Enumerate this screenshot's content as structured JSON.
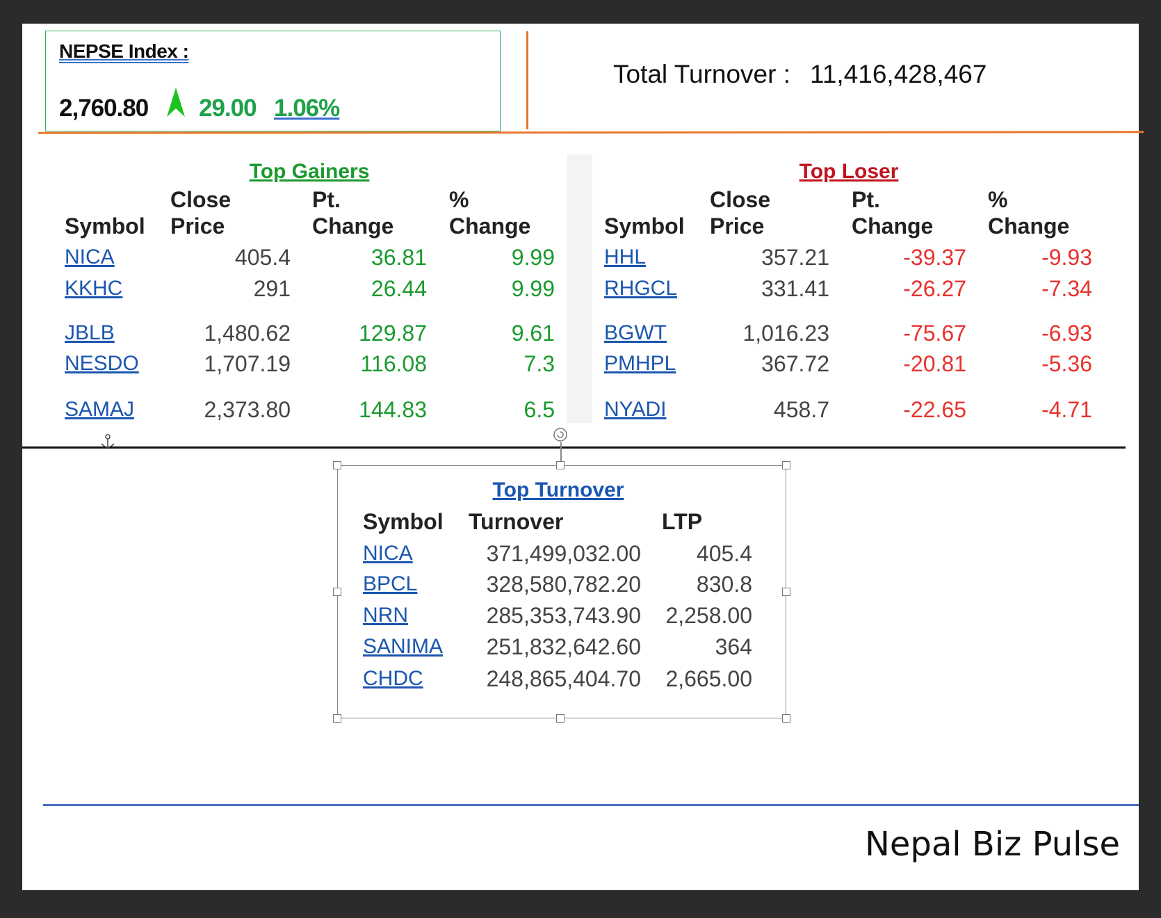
{
  "header": {
    "index_label": "NEPSE Index :",
    "index_value": "2,760.80",
    "index_change": "29.00",
    "index_change_pct": "1.06%",
    "total_turnover_label": "Total Turnover :",
    "total_turnover": "11,416,428,467"
  },
  "top_gainers": {
    "title": "Top Gainers",
    "columns": [
      "Symbol",
      "Close Price",
      "Pt. Change",
      "% Change"
    ],
    "rows": [
      [
        "NICA",
        "405.4",
        "36.81",
        "9.99"
      ],
      [
        "KKHC",
        "291",
        "26.44",
        "9.99"
      ],
      [
        "JBLB",
        "1,480.62",
        "129.87",
        "9.61"
      ],
      [
        "NESDO",
        "1,707.19",
        "116.08",
        "7.3"
      ],
      [
        "SAMAJ",
        "2,373.80",
        "144.83",
        "6.5"
      ]
    ]
  },
  "top_loser": {
    "title": "Top Loser",
    "columns": [
      "Symbol",
      "Close Price",
      "Pt. Change",
      "% Change"
    ],
    "rows": [
      [
        "HHL",
        "357.21",
        "-39.37",
        "-9.93"
      ],
      [
        "RHGCL",
        "331.41",
        "-26.27",
        "-7.34"
      ],
      [
        "BGWT",
        "1,016.23",
        "-75.67",
        "-6.93"
      ],
      [
        "PMHPL",
        "367.72",
        "-20.81",
        "-5.36"
      ],
      [
        "NYADI",
        "458.7",
        "-22.65",
        "-4.71"
      ]
    ]
  },
  "top_turnover": {
    "title": "Top Turnover",
    "columns": [
      "Symbol",
      "Turnover",
      "LTP"
    ],
    "rows": [
      [
        "NICA",
        "371,499,032.00",
        "405.4"
      ],
      [
        "BPCL",
        "328,580,782.20",
        "830.8"
      ],
      [
        "NRN",
        "285,353,743.90",
        "2,258.00"
      ],
      [
        "SANIMA",
        "251,832,642.60",
        "364"
      ],
      [
        "CHDC",
        "248,865,404.70",
        "2,665.00"
      ]
    ]
  },
  "footer": {
    "brand": "Nepal Biz Pulse"
  }
}
